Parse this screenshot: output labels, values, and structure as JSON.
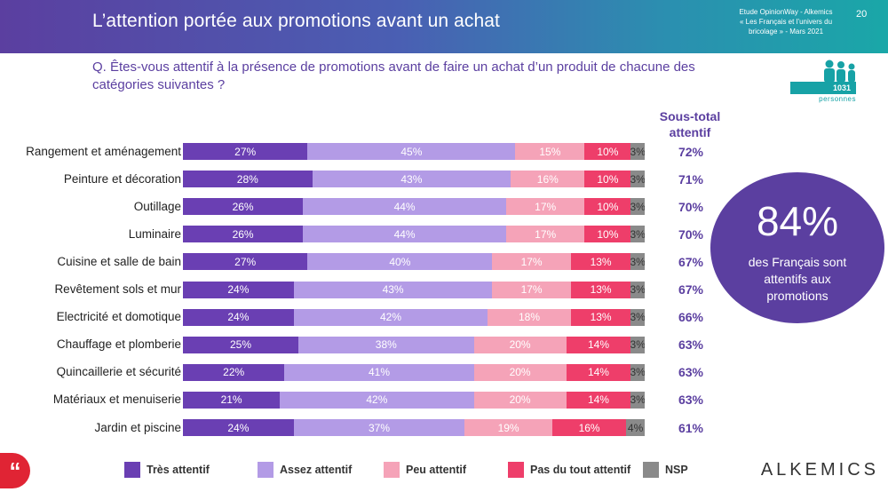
{
  "header": {
    "title": "L’attention portée aux promotions avant un achat",
    "study_lines": [
      "Etude OpinionWay - Alkemics",
      "« Les Français et l’univers du",
      "bricolage » - Mars 2021"
    ],
    "page_number": "20"
  },
  "question": "Q. Êtes-vous attentif à la présence de promotions avant de faire un achat d’un produit de chacune des catégories suivantes ?",
  "sample": {
    "count": "1031",
    "label": "personnes"
  },
  "subtotal_header": [
    "Sous-total",
    "attentif"
  ],
  "callout": {
    "value": "84%",
    "text": "des Français sont attentifs aux promotions"
  },
  "brand": "ALKEMICS",
  "quote_glyph": "“",
  "colors": {
    "tres_attentif": "#6a3fb3",
    "assez_attentif": "#b39be6",
    "peu_attentif": "#f5a3b8",
    "pas_du_tout": "#ee3e6a",
    "nsp": "#8a8a8a",
    "accent": "#5b3fa0",
    "teal": "#17a2a6"
  },
  "chart_data": {
    "type": "bar",
    "orientation": "horizontal-stacked",
    "categories": [
      "Rangement et aménagement",
      "Peinture et décoration",
      "Outillage",
      "Luminaire",
      "Cuisine et salle de bain",
      "Revêtement sols et mur",
      "Electricité et domotique",
      "Chauffage et plomberie",
      "Quincaillerie et sécurité",
      "Matériaux et menuiserie",
      "Jardin et piscine"
    ],
    "series": [
      {
        "name": "Très attentif",
        "values": [
          27,
          28,
          26,
          26,
          27,
          24,
          24,
          25,
          22,
          21,
          24
        ]
      },
      {
        "name": "Assez attentif",
        "values": [
          45,
          43,
          44,
          44,
          40,
          43,
          42,
          38,
          41,
          42,
          37
        ]
      },
      {
        "name": "Peu attentif",
        "values": [
          15,
          16,
          17,
          17,
          17,
          17,
          18,
          20,
          20,
          20,
          19
        ]
      },
      {
        "name": "Pas du tout attentif",
        "values": [
          10,
          10,
          10,
          10,
          13,
          13,
          13,
          14,
          14,
          14,
          16
        ]
      },
      {
        "name": "NSP",
        "values": [
          3,
          3,
          3,
          3,
          3,
          3,
          3,
          3,
          3,
          3,
          4
        ]
      }
    ],
    "subtotals": [
      "72%",
      "71%",
      "70%",
      "70%",
      "67%",
      "67%",
      "66%",
      "63%",
      "63%",
      "63%",
      "61%"
    ],
    "xlim": [
      0,
      100
    ],
    "legend_position": "bottom"
  }
}
